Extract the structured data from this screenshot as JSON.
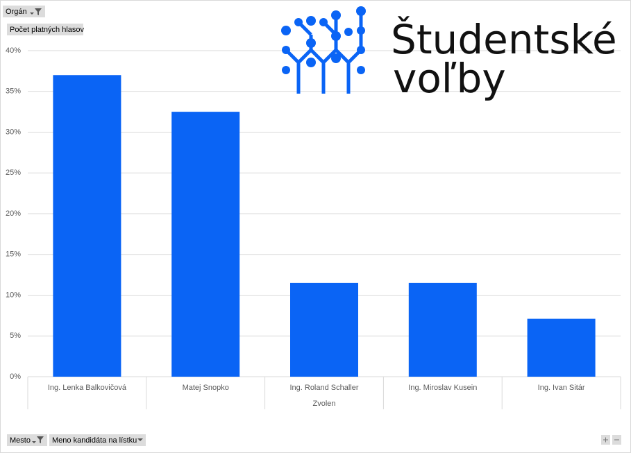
{
  "chart_data": {
    "type": "bar",
    "filter_button": "Orgán",
    "value_field": "Počet platných hlasov",
    "axis_fields": [
      "Mesto",
      "Meno kandidáta na lístku"
    ],
    "x_group_label": "Zvolen",
    "logo": [
      "Študentské",
      "voľby"
    ],
    "categories": [
      "Ing. Lenka Balkovičová",
      "Matej Snopko",
      "Ing. Roland Schaller",
      "Ing. Miroslav Kusein",
      "Ing. Ivan Sitár"
    ],
    "values": [
      37.0,
      32.5,
      11.5,
      11.5,
      7.1
    ],
    "color": "#0a64f5",
    "ylim": [
      0,
      40
    ],
    "yticks": [
      {
        "value": 0,
        "label": "0%"
      },
      {
        "value": 5,
        "label": "5%"
      },
      {
        "value": 10,
        "label": "10%"
      },
      {
        "value": 15,
        "label": "15%"
      },
      {
        "value": 20,
        "label": "20%"
      },
      {
        "value": 25,
        "label": "25%"
      },
      {
        "value": 30,
        "label": "30%"
      },
      {
        "value": 35,
        "label": "35%"
      },
      {
        "value": 40,
        "label": "40%"
      }
    ],
    "grid": true
  }
}
